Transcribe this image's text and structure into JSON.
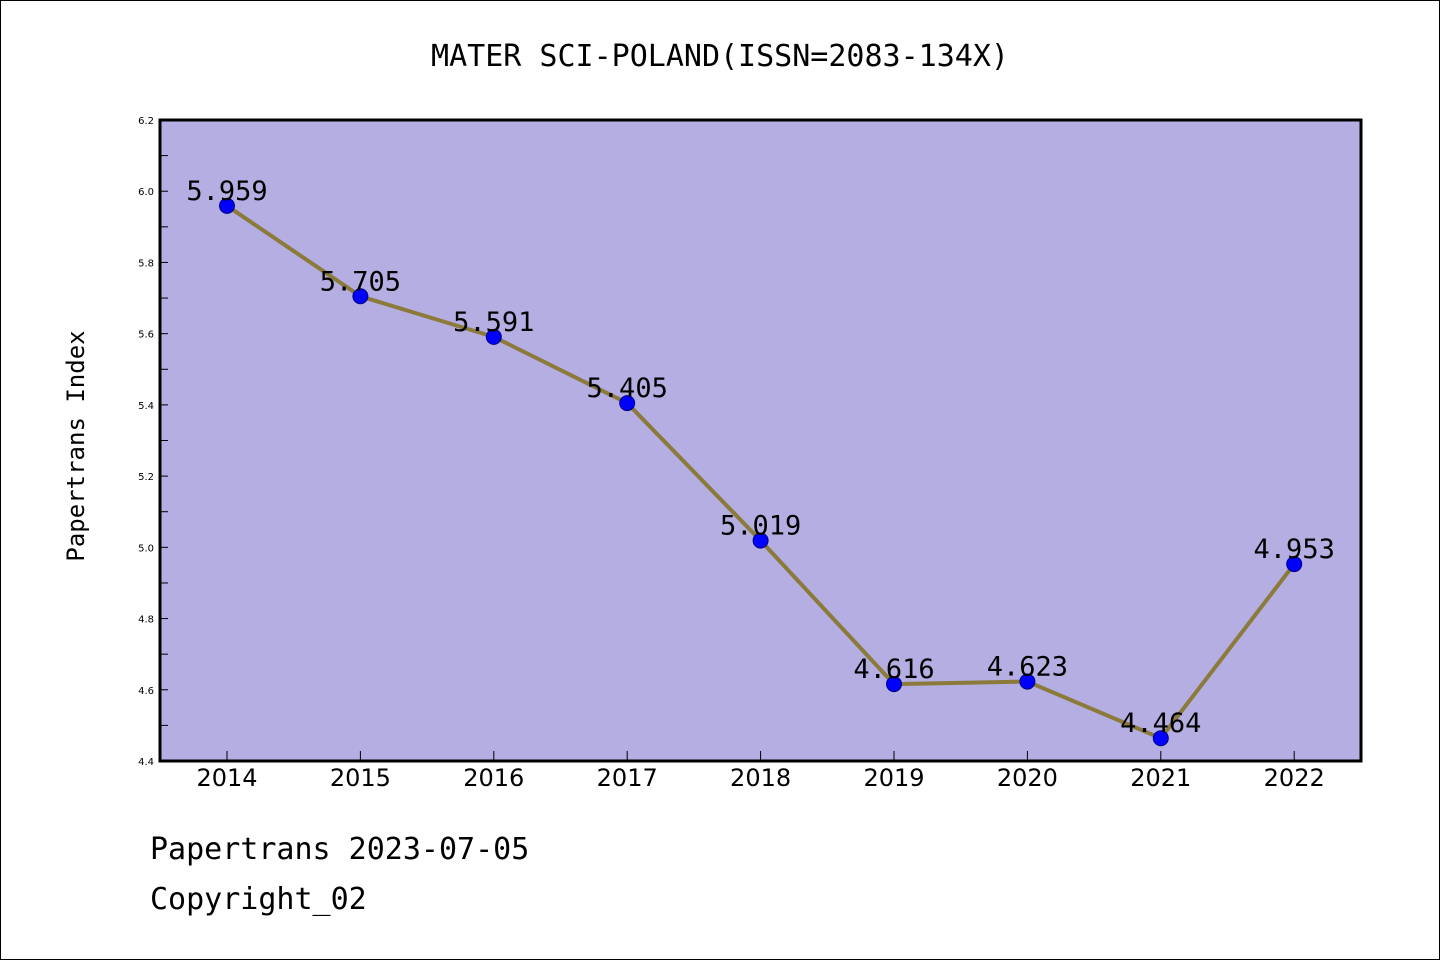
{
  "footer": {
    "line1": "Papertrans 2023-07-05",
    "line2": "Copyright_02"
  },
  "chart_data": {
    "type": "line",
    "title": "MATER SCI-POLAND(ISSN=2083-134X)",
    "xlabel": "",
    "ylabel": "Papertrans Index",
    "categories": [
      "2014",
      "2015",
      "2016",
      "2017",
      "2018",
      "2019",
      "2020",
      "2021",
      "2022"
    ],
    "series": [
      {
        "values": [
          5.959,
          5.705,
          5.591,
          5.405,
          5.019,
          4.616,
          4.623,
          4.464,
          4.953
        ],
        "value_labels": [
          "5.959",
          "5.705",
          "5.591",
          "5.405",
          "5.019",
          "4.616",
          "4.623",
          "4.464",
          "4.953"
        ]
      }
    ],
    "ylim": [
      4.4,
      6.2
    ],
    "yticks": [
      "4.4",
      "4.6",
      "4.8",
      "5.0",
      "5.2",
      "5.4",
      "5.6",
      "5.8",
      "6.0",
      "6.2"
    ],
    "grid": false,
    "legend": "none",
    "colors": {
      "plot_background": "#b4aee2",
      "line": "#8b7a3a",
      "marker": "#0000ff",
      "marker_edge": "#000080"
    }
  }
}
